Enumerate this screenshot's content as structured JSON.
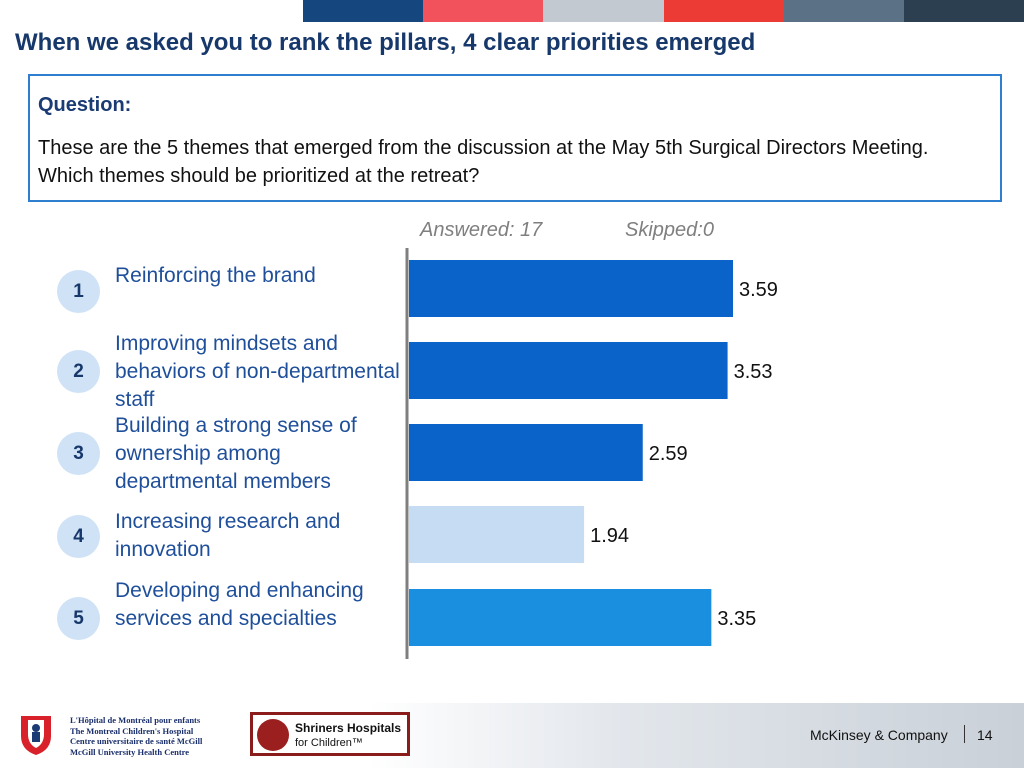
{
  "header": {
    "title": "When we asked you to rank the pillars, 4 clear priorities emerged",
    "stripe_colors": [
      "#16467e",
      "#f2525c",
      "#c3c9d1",
      "#ec3b35",
      "#5b7186",
      "#2c3f51"
    ]
  },
  "question": {
    "label": "Question:",
    "text": "These are the 5 themes that emerged from the discussion at the May 5th Surgical Directors Meeting. Which themes should be prioritized at the retreat?"
  },
  "stats": {
    "answered": "Answered: 17",
    "skipped": "Skipped:0"
  },
  "themes": [
    {
      "rank": "1",
      "label": "Reinforcing the brand"
    },
    {
      "rank": "2",
      "label": "Improving mindsets and behaviors of non-departmental staff"
    },
    {
      "rank": "3",
      "label": "Building a strong sense of ownership among departmental members"
    },
    {
      "rank": "4",
      "label": "Increasing research and innovation"
    },
    {
      "rank": "5",
      "label": "Developing and enhancing services and specialties"
    }
  ],
  "chart_data": {
    "type": "bar",
    "orientation": "horizontal",
    "categories": [
      "Reinforcing the brand",
      "Improving mindsets and behaviors of non-departmental staff",
      "Building a strong sense of ownership among departmental members",
      "Increasing research and innovation",
      "Developing and enhancing services and specialties"
    ],
    "values": [
      3.59,
      3.53,
      2.59,
      1.94,
      3.35
    ],
    "value_labels": [
      "3.59",
      "3.53",
      "2.59",
      "1.94",
      "3.35"
    ],
    "bar_colors": [
      "#0a63c9",
      "#0a63c9",
      "#0a63c9",
      "#c6dcf3",
      "#1a8fe0"
    ],
    "xlim": [
      0,
      4.5
    ],
    "grid": false,
    "title": "",
    "xlabel": "",
    "ylabel": ""
  },
  "footer": {
    "hospital_lines": [
      "L'Hôpital de Montréal pour enfants",
      "The Montreal Children's Hospital",
      "Centre universitaire de santé McGill",
      "McGill University Health Centre"
    ],
    "shriners_name": "Shriners Hospitals",
    "shriners_sub": "for Children™",
    "company": "McKinsey & Company",
    "page_number": "14"
  }
}
